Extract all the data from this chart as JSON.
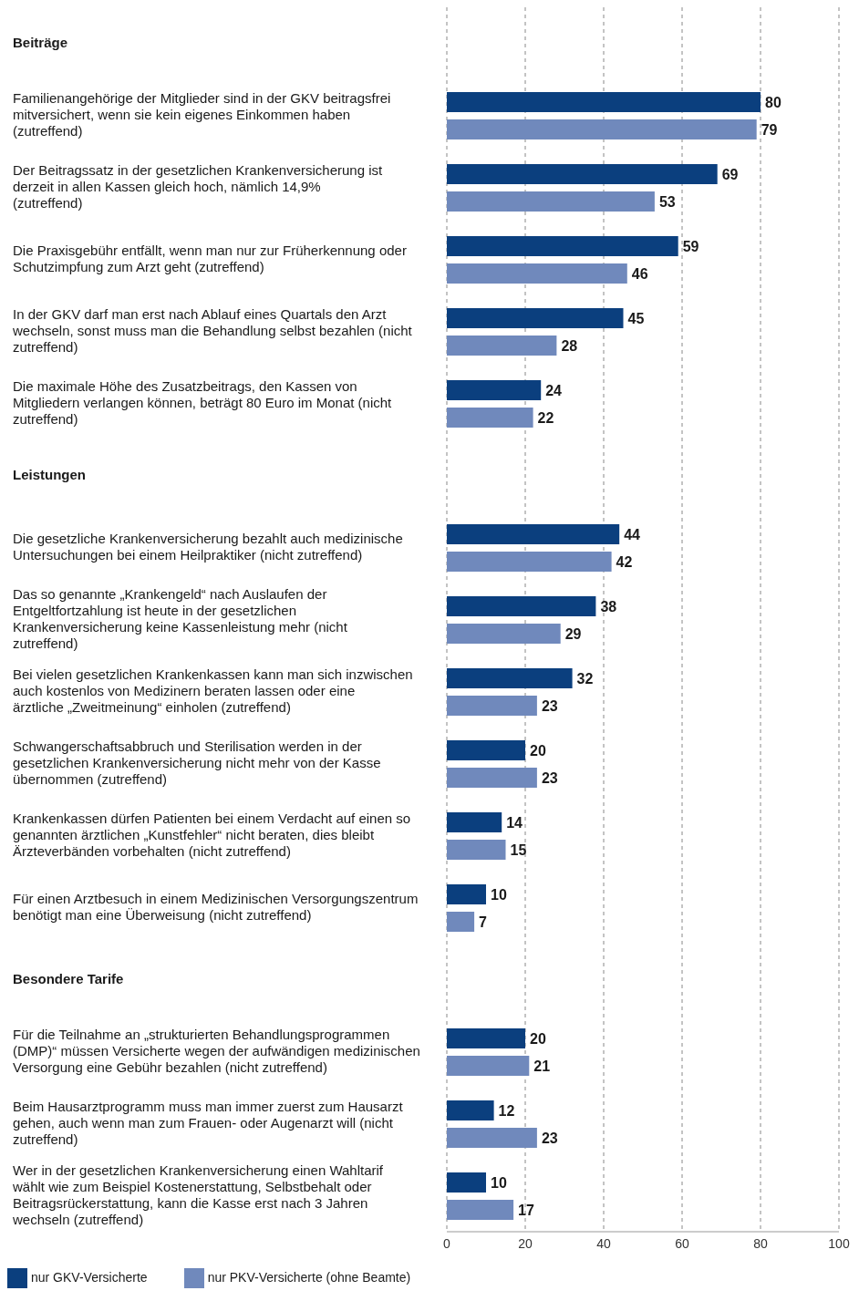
{
  "chart_data": {
    "type": "bar",
    "orientation": "horizontal",
    "categories": [
      "Beiträge",
      "Familienangehörige der Mitglieder sind in der GKV beitragsfrei mitversichert, wenn sie kein eigenes Einkommen haben (zutreffend)",
      "Der Beitragssatz in der gesetzlichen Krankenversicherung ist derzeit in allen Kassen gleich hoch, nämlich 14,9% (zutreffend)",
      "Die Praxisgebühr entfällt, wenn man nur zur Früherkennung oder Schutzimpfung zum Arzt geht (zutreffend)",
      "In der GKV darf man erst nach Ablauf eines Quartals den Arzt wechseln, sonst muss man die Behandlung selbst bezahlen (nicht zutreffend)",
      "Die maximale Höhe des Zusatzbeitrags, den Kassen von Mitgliedern verlangen können, beträgt 80 Euro im Monat (nicht zutreffend)",
      "Leistungen",
      "Die gesetzliche Krankenversicherung bezahlt auch medizinische Untersuchungen bei einem Heilpraktiker (nicht zutreffend)",
      "Das so genannte „Krankengeld“ nach Auslaufen der Entgeltfortzahlung ist heute in der gesetzlichen Krankenversicherung keine Kassenleistung mehr (nicht zutreffend)",
      "Bei vielen gesetzlichen Krankenkassen kann man sich inzwischen auch kostenlos von Medizinern beraten lassen oder eine ärztliche „Zweitmeinung“ einholen (zutreffend)",
      "Schwangerschaftsabbruch und Sterilisation werden in der gesetzlichen Krankenversicherung nicht mehr von der Kasse übernommen (zutreffend)",
      "Krankenkassen dürfen Patienten bei einem Verdacht auf einen so genannten ärztlichen „Kunstfehler“ nicht beraten, dies bleibt Ärzteverbänden vorbehalten (nicht zutreffend)",
      "Für einen Arztbesuch in einem Medizinischen Versorgungszentrum benötigt man eine Überweisung (nicht zutreffend)",
      "Besondere Tarife",
      "Für die Teilnahme an „strukturierten Behandlungsprogrammen (DMP)“ müssen Versicherte wegen der aufwändigen medizinischen Versorgung eine Gebühr bezahlen (nicht zutreffend)",
      "Beim Hausarztprogramm muss man immer zuerst zum Hausarzt gehen, auch wenn man zum Frauen- oder Augenarzt will (nicht zutreffend)",
      "Wer in der gesetzlichen Krankenversicherung einen Wahltarif wählt wie zum Beispiel Kostenerstattung, Selbstbehalt oder Beitragsrückerstattung, kann die Kasse erst nach 3 Jahren wechseln (zutreffend)"
    ],
    "series": [
      {
        "name": "nur GKV-Versicherte",
        "color": "#0b3f7e",
        "values": [
          null,
          80,
          69,
          59,
          45,
          24,
          null,
          44,
          38,
          32,
          20,
          14,
          10,
          null,
          20,
          12,
          10
        ]
      },
      {
        "name": "nur PKV-Versicherte (ohne Beamte)",
        "color": "#7089bc",
        "values": [
          null,
          79,
          53,
          46,
          28,
          22,
          null,
          42,
          29,
          23,
          23,
          15,
          7,
          null,
          21,
          23,
          17
        ]
      }
    ],
    "xlim": [
      0,
      100
    ],
    "xticks": [
      0,
      20,
      40,
      60,
      80,
      100
    ],
    "grid": "x",
    "legend": "bottom left",
    "data_labels": true
  }
}
